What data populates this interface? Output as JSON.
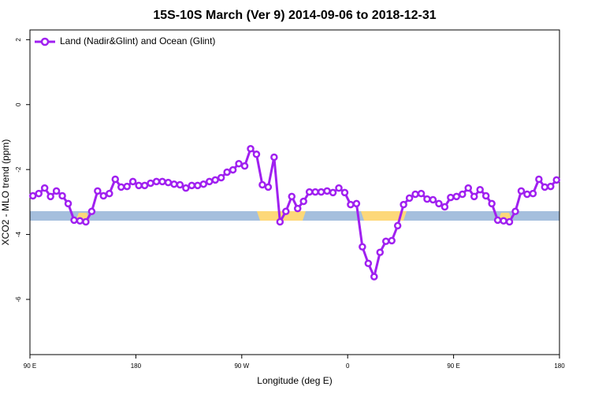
{
  "chart_data": {
    "type": "line",
    "title": "15S-10S March (Ver 9)   2014-09-06 to 2018-12-31",
    "x_label": "Longitude (deg E)",
    "y_label": "XCO2 - MLO trend (ppm)",
    "x": [
      92.5,
      97.5,
      102.5,
      107.5,
      112.5,
      117.5,
      122.5,
      127.5,
      132.5,
      137.5,
      142.5,
      147.5,
      152.5,
      157.5,
      162.5,
      167.5,
      172.5,
      177.5,
      182.5,
      187.5,
      192.5,
      197.5,
      202.5,
      207.5,
      212.5,
      217.5,
      222.5,
      227.5,
      232.5,
      237.5,
      242.5,
      247.5,
      252.5,
      257.5,
      262.5,
      267.5,
      272.5,
      277.5,
      282.5,
      287.5,
      292.5,
      297.5,
      302.5,
      307.5,
      312.5,
      317.5,
      322.5,
      327.5,
      332.5,
      337.5,
      342.5,
      347.5,
      352.5,
      357.5,
      362.5,
      367.5,
      372.5,
      377.5,
      382.5,
      387.5,
      392.5,
      397.5,
      402.5,
      407.5,
      412.5,
      417.5,
      422.5,
      427.5,
      432.5,
      437.5,
      442.5,
      447.5,
      452.5,
      457.5,
      462.5,
      467.5,
      472.5,
      477.5,
      482.5,
      487.5,
      492.5,
      497.5,
      502.5,
      507.5,
      512.5,
      517.5,
      522.5,
      527.5,
      532.5,
      537.5
    ],
    "series": [
      {
        "name": "Land (Nadir&Glint) and Ocean (Glint)",
        "color": "#a020f0",
        "values": [
          -2.81,
          -2.74,
          -2.57,
          -2.83,
          -2.66,
          -2.81,
          -3.05,
          -3.56,
          -3.58,
          -3.61,
          -3.29,
          -2.66,
          -2.81,
          -2.74,
          -2.3,
          -2.54,
          -2.52,
          -2.37,
          -2.49,
          -2.49,
          -2.42,
          -2.37,
          -2.37,
          -2.4,
          -2.45,
          -2.47,
          -2.57,
          -2.49,
          -2.49,
          -2.45,
          -2.37,
          -2.32,
          -2.25,
          -2.08,
          -2.01,
          -1.82,
          -1.89,
          -1.36,
          -1.53,
          -2.47,
          -2.54,
          -1.62,
          -3.61,
          -3.29,
          -2.83,
          -3.2,
          -2.98,
          -2.69,
          -2.69,
          -2.69,
          -2.66,
          -2.71,
          -2.57,
          -2.71,
          -3.08,
          -3.05,
          -4.38,
          -4.89,
          -5.3,
          -4.55,
          -4.21,
          -4.19,
          -3.73,
          -3.08,
          -2.88,
          -2.76,
          -2.74,
          -2.91,
          -2.93,
          -3.05,
          -3.15,
          -2.86,
          -2.83,
          -2.76,
          -2.57,
          -2.83,
          -2.62,
          -2.81,
          -3.05,
          -3.56,
          -3.58,
          -3.61,
          -3.29,
          -2.66,
          -2.76,
          -2.74,
          -2.3,
          -2.54,
          -2.52,
          -2.32
        ]
      }
    ],
    "xlim": [
      90,
      540
    ],
    "xticks": [
      {
        "value": 90,
        "label": "90 E"
      },
      180,
      {
        "value": 270,
        "label": "90 W"
      },
      {
        "value": 360,
        "label": "0"
      },
      {
        "value": 450,
        "label": "90 E"
      },
      {
        "value": 540,
        "label": "180"
      }
    ],
    "ylim": [
      -7.7,
      2.3
    ],
    "yticks": [
      -6,
      -4,
      -2,
      0,
      2
    ],
    "legend": "top-left"
  }
}
